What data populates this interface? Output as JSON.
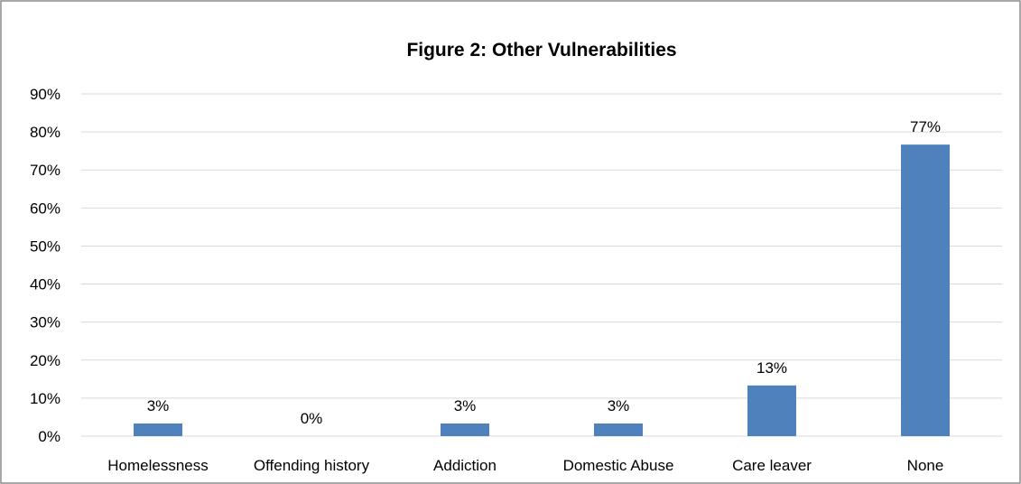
{
  "colors": {
    "bar": "#4f81bd",
    "grid": "#d9d9d9",
    "frame": "#8c8c8c",
    "text": "#000000"
  },
  "chart_data": {
    "type": "bar",
    "title": "Figure 2: Other Vulnerabilities",
    "xlabel": "",
    "ylabel": "",
    "categories": [
      "Homelessness",
      "Offending history",
      "Addiction",
      "Domestic Abuse",
      "Care leaver",
      "None"
    ],
    "values": [
      3.33,
      0,
      3.33,
      3.33,
      13.33,
      76.67
    ],
    "data_labels": [
      "3%",
      "0%",
      "3%",
      "3%",
      "13%",
      "77%"
    ],
    "ylim": [
      0,
      90
    ],
    "y_ticks": [
      0,
      10,
      20,
      30,
      40,
      50,
      60,
      70,
      80,
      90
    ],
    "y_tick_labels": [
      "0%",
      "10%",
      "20%",
      "30%",
      "40%",
      "50%",
      "60%",
      "70%",
      "80%",
      "90%"
    ],
    "grid": true,
    "legend": "none"
  }
}
